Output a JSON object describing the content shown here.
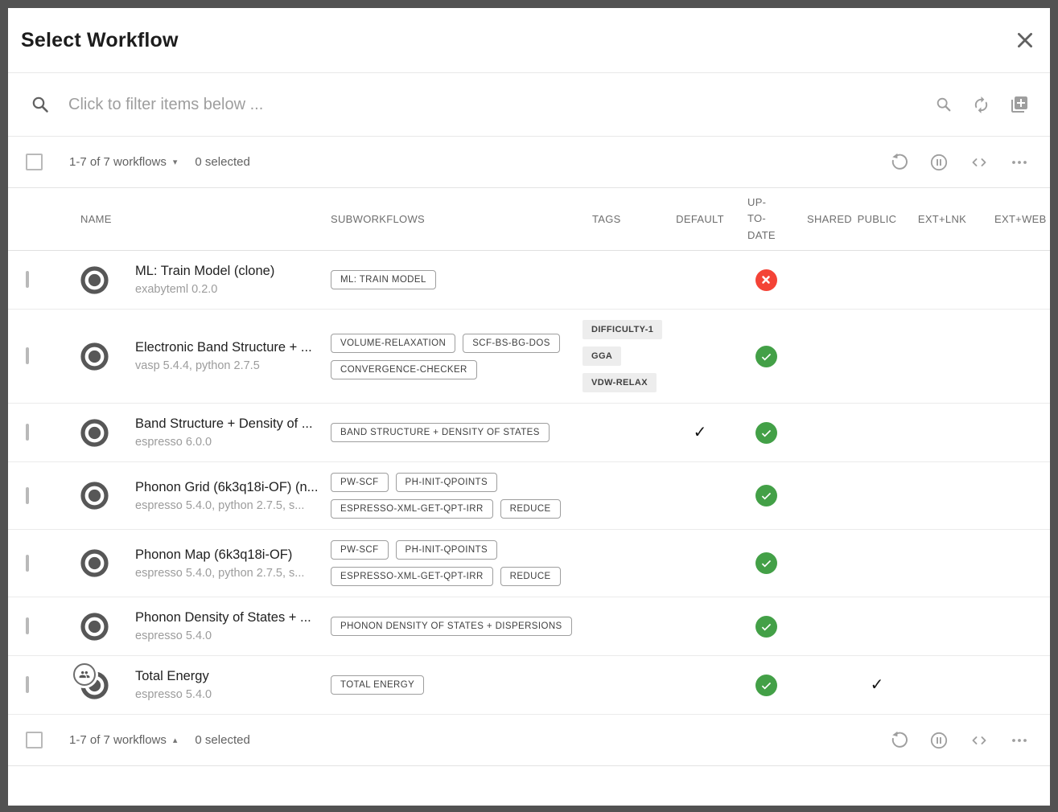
{
  "dialog": {
    "title": "Select Workflow"
  },
  "search": {
    "placeholder": "Click to filter items below ..."
  },
  "toolbar": {
    "range_label": "1-7 of 7 workflows",
    "selected_label": "0 selected",
    "sort_arrow_down": "▾",
    "sort_arrow_up": "▴"
  },
  "icons": {
    "close": "close-icon",
    "search_left": "search-icon",
    "search_right": "search-icon",
    "refresh": "refresh-icon",
    "library_add": "library-add-icon",
    "history": "history-icon",
    "pause": "pause-circle-icon",
    "code": "code-icon",
    "more": "more-horiz-icon",
    "radio": "radio-selected-icon",
    "group": "group-people-icon"
  },
  "colors": {
    "success": "#43a047",
    "error": "#f44336"
  },
  "table": {
    "columns": [
      "NAME",
      "SUBWORKFLOWS",
      "TAGS",
      "DEFAULT",
      "UP-TO-DATE",
      "SHARED",
      "PUBLIC",
      "EXT+LNK",
      "EXT+WEB"
    ],
    "rows": [
      {
        "name": "ML: Train Model (clone)",
        "subtitle": "exabyteml 0.2.0",
        "subworkflows": [
          "ML: TRAIN MODEL"
        ],
        "tags": [],
        "default_checked": false,
        "up_to_date": "error",
        "shared_checked": false,
        "public_checked": false,
        "group_badge": false
      },
      {
        "name": "Electronic Band Structure + ...",
        "subtitle": "vasp 5.4.4, python 2.7.5",
        "subworkflows": [
          "VOLUME-RELAXATION",
          "SCF-BS-BG-DOS",
          "CONVERGENCE-CHECKER"
        ],
        "tags": [
          "DIFFICULTY-1",
          "GGA",
          "VDW-RELAX"
        ],
        "default_checked": false,
        "up_to_date": "ok",
        "shared_checked": false,
        "public_checked": false,
        "group_badge": false
      },
      {
        "name": "Band Structure + Density of ...",
        "subtitle": "espresso 6.0.0",
        "subworkflows": [
          "BAND STRUCTURE + DENSITY OF STATES"
        ],
        "tags": [],
        "default_checked": true,
        "up_to_date": "ok",
        "shared_checked": false,
        "public_checked": false,
        "group_badge": false
      },
      {
        "name": "Phonon Grid (6k3q18i-OF) (n...",
        "subtitle": "espresso 5.4.0, python 2.7.5, s...",
        "subworkflows": [
          "PW-SCF",
          "PH-INIT-QPOINTS",
          "ESPRESSO-XML-GET-QPT-IRR",
          "REDUCE"
        ],
        "tags": [],
        "default_checked": false,
        "up_to_date": "ok",
        "shared_checked": false,
        "public_checked": false,
        "group_badge": false
      },
      {
        "name": "Phonon Map (6k3q18i-OF)",
        "subtitle": "espresso 5.4.0, python 2.7.5, s...",
        "subworkflows": [
          "PW-SCF",
          "PH-INIT-QPOINTS",
          "ESPRESSO-XML-GET-QPT-IRR",
          "REDUCE"
        ],
        "tags": [],
        "default_checked": false,
        "up_to_date": "ok",
        "shared_checked": false,
        "public_checked": false,
        "group_badge": false
      },
      {
        "name": "Phonon Density of States + ...",
        "subtitle": "espresso 5.4.0",
        "subworkflows": [
          "PHONON DENSITY OF STATES + DISPERSIONS"
        ],
        "tags": [],
        "default_checked": false,
        "up_to_date": "ok",
        "shared_checked": false,
        "public_checked": false,
        "group_badge": false
      },
      {
        "name": "Total Energy",
        "subtitle": "espresso 5.4.0",
        "subworkflows": [
          "TOTAL ENERGY"
        ],
        "tags": [],
        "default_checked": false,
        "up_to_date": "ok",
        "shared_checked": false,
        "public_checked": true,
        "group_badge": true
      }
    ]
  }
}
